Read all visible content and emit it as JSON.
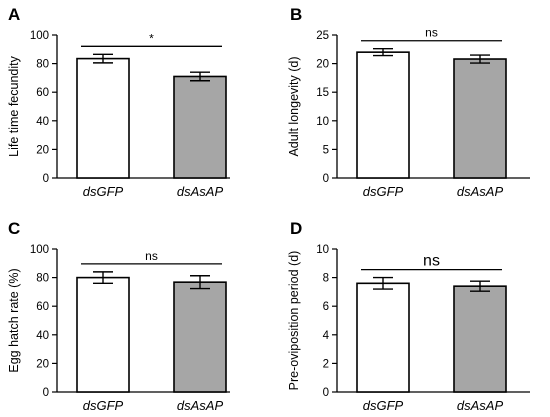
{
  "chart_data": [
    {
      "panel": "A",
      "type": "bar",
      "categories": [
        "dsGFP",
        "dsAsAP"
      ],
      "values": [
        83.5,
        71.0
      ],
      "errors": [
        3.0,
        3.0
      ],
      "bar_colors": [
        "#ffffff",
        "#a6a6a6"
      ],
      "ylabel": "Life time fecundity",
      "ylim": [
        0,
        100
      ],
      "yticks": [
        0,
        20,
        40,
        60,
        80,
        100
      ],
      "significance": "*"
    },
    {
      "panel": "B",
      "type": "bar",
      "categories": [
        "dsGFP",
        "dsAsAP"
      ],
      "values": [
        22.0,
        20.8
      ],
      "errors": [
        0.6,
        0.7
      ],
      "bar_colors": [
        "#ffffff",
        "#a6a6a6"
      ],
      "ylabel": "Adult longevity (d)",
      "ylim": [
        0,
        25
      ],
      "yticks": [
        0,
        5,
        10,
        15,
        20,
        25
      ],
      "significance": "ns"
    },
    {
      "panel": "C",
      "type": "bar",
      "categories": [
        "dsGFP",
        "dsAsAP"
      ],
      "values": [
        80.0,
        76.8
      ],
      "errors": [
        4.0,
        4.5
      ],
      "bar_colors": [
        "#ffffff",
        "#a6a6a6"
      ],
      "ylabel": "Egg hatch rate (%)",
      "ylim": [
        0,
        100
      ],
      "yticks": [
        0,
        20,
        40,
        60,
        80,
        100
      ],
      "significance": "ns"
    },
    {
      "panel": "D",
      "type": "bar",
      "categories": [
        "dsGFP",
        "dsAsAP"
      ],
      "values": [
        7.6,
        7.4
      ],
      "errors": [
        0.4,
        0.35
      ],
      "bar_colors": [
        "#ffffff",
        "#a6a6a6"
      ],
      "ylabel": "Pre-oviposition period (d)",
      "ylim": [
        0,
        10
      ],
      "yticks": [
        0,
        2,
        4,
        6,
        8,
        10
      ],
      "significance": "ns"
    }
  ]
}
